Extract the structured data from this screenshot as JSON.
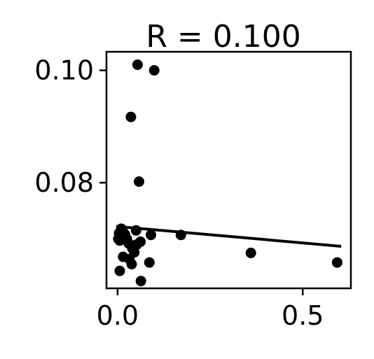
{
  "chart_data": {
    "type": "scatter",
    "title": "R = 0.100",
    "xlabel": "",
    "ylabel": "",
    "xlim": [
      -0.03,
      0.63
    ],
    "ylim": [
      0.0612,
      0.1033
    ],
    "xticks": [
      {
        "value": 0.0,
        "label": "0.0"
      },
      {
        "value": 0.5,
        "label": "0.5"
      }
    ],
    "yticks": [
      {
        "value": 0.08,
        "label": "0.08"
      },
      {
        "value": 0.1,
        "label": "0.10"
      }
    ],
    "grid": false,
    "legend": "none",
    "colors": {
      "points": "#000000",
      "fit_line": "#000000",
      "axes": "#000000"
    },
    "points": [
      {
        "x": 0.054,
        "y": 0.101
      },
      {
        "x": 0.099,
        "y": 0.1
      },
      {
        "x": 0.036,
        "y": 0.0917
      },
      {
        "x": 0.058,
        "y": 0.0802
      },
      {
        "x": 0.004,
        "y": 0.071
      },
      {
        "x": 0.01,
        "y": 0.0718
      },
      {
        "x": 0.014,
        "y": 0.0713
      },
      {
        "x": 0.02,
        "y": 0.0708
      },
      {
        "x": 0.002,
        "y": 0.07
      },
      {
        "x": 0.006,
        "y": 0.0697
      },
      {
        "x": 0.012,
        "y": 0.0705
      },
      {
        "x": 0.025,
        "y": 0.07
      },
      {
        "x": 0.03,
        "y": 0.0692
      },
      {
        "x": 0.05,
        "y": 0.0715
      },
      {
        "x": 0.062,
        "y": 0.0695
      },
      {
        "x": 0.052,
        "y": 0.069
      },
      {
        "x": 0.09,
        "y": 0.0707
      },
      {
        "x": 0.171,
        "y": 0.0707
      },
      {
        "x": 0.04,
        "y": 0.0683
      },
      {
        "x": 0.045,
        "y": 0.0676
      },
      {
        "x": 0.015,
        "y": 0.0668
      },
      {
        "x": 0.032,
        "y": 0.0664
      },
      {
        "x": 0.038,
        "y": 0.0655
      },
      {
        "x": 0.086,
        "y": 0.0658
      },
      {
        "x": 0.006,
        "y": 0.0643
      },
      {
        "x": 0.063,
        "y": 0.0625
      },
      {
        "x": 0.36,
        "y": 0.0675
      },
      {
        "x": 0.593,
        "y": 0.0658
      }
    ],
    "fit_line": {
      "x": [
        0.0,
        0.6
      ],
      "y": [
        0.0722,
        0.0687
      ]
    }
  }
}
